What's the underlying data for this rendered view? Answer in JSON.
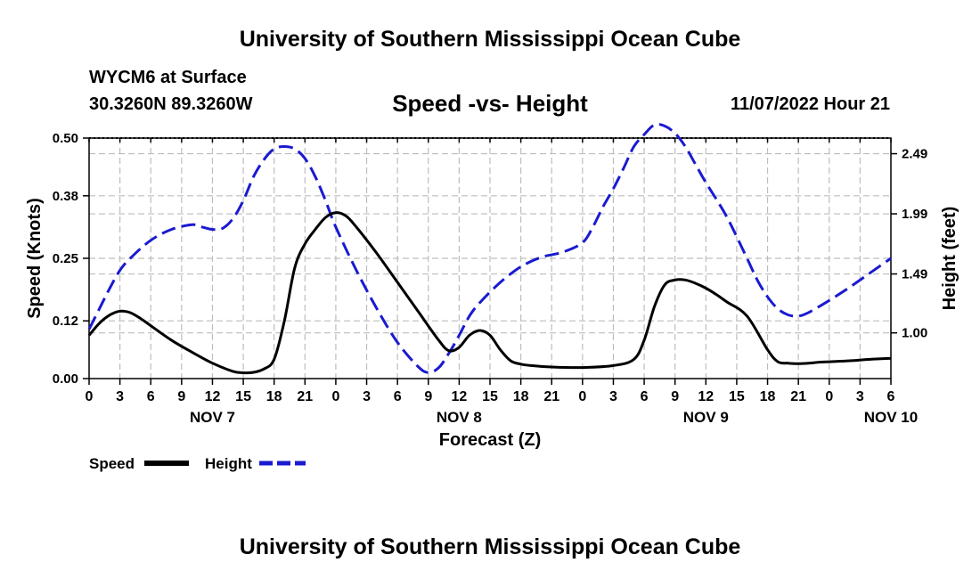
{
  "header": {
    "title": "University of Southern Mississippi Ocean Cube",
    "station": "WYCM6 at Surface",
    "coordinates": "30.3260N  89.3260W",
    "chart_title": "Speed -vs- Height",
    "date_hour": "11/07/2022 Hour 21"
  },
  "footer": {
    "title": "University of Southern Mississippi Ocean Cube"
  },
  "legend": {
    "speed_label": "Speed",
    "height_label": "Height"
  },
  "colors": {
    "speed": "#000000",
    "height": "#1a1ad0",
    "grid": "#bdbdbd"
  },
  "chart_data": {
    "type": "line",
    "title": "Speed -vs- Height",
    "xlabel": "Forecast (Z)",
    "ylabel": "Speed (Knots)",
    "ylabel_right": "Height (feet)",
    "x_range_hours": [
      0,
      78
    ],
    "x_tick_hours": [
      0,
      3,
      6,
      9,
      12,
      15,
      18,
      21,
      24,
      27,
      30,
      33,
      36,
      39,
      42,
      45,
      48,
      51,
      54,
      57,
      60,
      63,
      66,
      69,
      72,
      75,
      78
    ],
    "x_tick_labels": [
      "0",
      "3",
      "6",
      "9",
      "12",
      "15",
      "18",
      "21",
      "0",
      "3",
      "6",
      "9",
      "12",
      "15",
      "18",
      "21",
      "0",
      "3",
      "6",
      "9",
      "12",
      "15",
      "18",
      "21",
      "0",
      "3",
      "6"
    ],
    "day_labels": [
      {
        "hour": 12,
        "label": "NOV 7"
      },
      {
        "hour": 36,
        "label": "NOV 8"
      },
      {
        "hour": 60,
        "label": "NOV 9"
      },
      {
        "hour": 78,
        "label": "NOV 10"
      }
    ],
    "ylim_left": [
      0,
      0.5
    ],
    "y_ticks_left": [
      0.0,
      0.12,
      0.25,
      0.38,
      0.5
    ],
    "y_tick_labels_left": [
      "0.00",
      "0.12",
      "0.25",
      "0.38",
      "0.50"
    ],
    "ylim_right": [
      0.62,
      2.62
    ],
    "y_ticks_right": [
      1.0,
      1.49,
      1.99,
      2.49
    ],
    "y_tick_labels_right": [
      "1.00",
      "1.49",
      "1.99",
      "2.49"
    ],
    "grid": true,
    "series": [
      {
        "name": "Speed",
        "axis": "left",
        "style": "solid",
        "hours": [
          0,
          1,
          2,
          3,
          4,
          5,
          6,
          8,
          10,
          12,
          14,
          15,
          16,
          17,
          18,
          19,
          20,
          21,
          22,
          23,
          24,
          25,
          26,
          28,
          30,
          32,
          34,
          35,
          36,
          37,
          38,
          39,
          40,
          41,
          42,
          43,
          45,
          48,
          51,
          53,
          54,
          55,
          56,
          57,
          58,
          59,
          60,
          61,
          62,
          64,
          66,
          67,
          68,
          69,
          70,
          71,
          72,
          74,
          76,
          78
        ],
        "values": [
          0.09,
          0.115,
          0.132,
          0.14,
          0.137,
          0.125,
          0.11,
          0.08,
          0.055,
          0.032,
          0.015,
          0.012,
          0.013,
          0.02,
          0.04,
          0.12,
          0.23,
          0.28,
          0.31,
          0.335,
          0.345,
          0.338,
          0.315,
          0.26,
          0.2,
          0.14,
          0.08,
          0.058,
          0.065,
          0.09,
          0.1,
          0.09,
          0.06,
          0.037,
          0.03,
          0.027,
          0.024,
          0.023,
          0.027,
          0.04,
          0.08,
          0.15,
          0.195,
          0.205,
          0.205,
          0.198,
          0.188,
          0.175,
          0.16,
          0.13,
          0.06,
          0.035,
          0.032,
          0.031,
          0.032,
          0.034,
          0.035,
          0.037,
          0.04,
          0.042
        ]
      },
      {
        "name": "Height",
        "axis": "right",
        "style": "dashed",
        "hours": [
          0,
          1,
          2,
          3,
          4,
          6,
          8,
          10,
          11,
          12,
          13,
          14,
          15,
          16,
          17,
          18,
          19,
          20,
          21,
          22,
          23,
          24,
          26,
          28,
          30,
          32,
          33,
          34,
          35,
          36,
          37,
          38,
          40,
          42,
          44,
          46,
          48,
          49,
          50,
          51,
          52,
          53,
          54,
          55,
          56,
          57,
          58,
          59,
          60,
          62,
          64,
          65,
          66,
          67,
          68,
          69,
          70,
          72,
          74,
          76,
          78
        ],
        "values": [
          1.03,
          1.2,
          1.37,
          1.52,
          1.62,
          1.77,
          1.86,
          1.9,
          1.88,
          1.86,
          1.87,
          1.95,
          2.1,
          2.3,
          2.44,
          2.53,
          2.55,
          2.53,
          2.45,
          2.3,
          2.1,
          1.88,
          1.52,
          1.2,
          0.92,
          0.72,
          0.67,
          0.71,
          0.83,
          0.98,
          1.14,
          1.25,
          1.42,
          1.55,
          1.63,
          1.67,
          1.75,
          1.88,
          2.05,
          2.2,
          2.37,
          2.55,
          2.65,
          2.73,
          2.72,
          2.66,
          2.55,
          2.4,
          2.25,
          1.97,
          1.62,
          1.44,
          1.3,
          1.2,
          1.15,
          1.14,
          1.17,
          1.27,
          1.38,
          1.5,
          1.62
        ]
      }
    ]
  }
}
